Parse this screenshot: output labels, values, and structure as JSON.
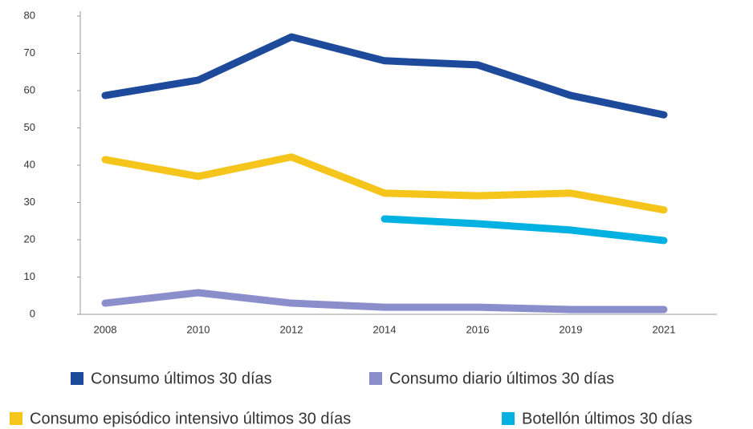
{
  "chart_data": {
    "type": "line",
    "categories": [
      "2008",
      "2010",
      "2012",
      "2014",
      "2016",
      "2019",
      "2021"
    ],
    "series": [
      {
        "name": "Consumo últimos 30 días",
        "color": "#1e4a9b",
        "values": [
          58.7,
          62.8,
          74.4,
          68,
          66.9,
          58.7,
          53.5
        ]
      },
      {
        "name": "Consumo diario últimos 30 días",
        "color": "#8a8fcc",
        "values": [
          3,
          5.8,
          3,
          1.9,
          1.9,
          1.3,
          1.3
        ]
      },
      {
        "name": "Consumo episódico intensivo últimos 30 días",
        "color": "#f6c51b",
        "values": [
          41.5,
          37,
          42.2,
          32.5,
          31.8,
          32.5,
          28
        ]
      },
      {
        "name": "Botellón últimos 30 días",
        "color": "#00b1e2",
        "values": [
          null,
          null,
          null,
          25.6,
          24.3,
          22.6,
          19.8
        ]
      }
    ],
    "ylim": [
      0,
      80
    ],
    "yticks": [
      0,
      10,
      20,
      30,
      40,
      50,
      60,
      70,
      80
    ]
  }
}
